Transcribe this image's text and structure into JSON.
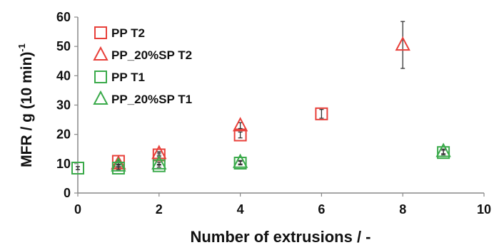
{
  "chart_data": {
    "type": "scatter",
    "xlabel": "Number of extrusions / -",
    "ylabel": "MFR / g (10 min)",
    "ylabel_sup": "-1",
    "xlim": [
      0,
      10
    ],
    "ylim": [
      0,
      60
    ],
    "x_ticks": [
      0,
      2,
      4,
      6,
      8,
      10
    ],
    "y_ticks": [
      0,
      10,
      20,
      30,
      40,
      50,
      60
    ],
    "grid": false,
    "legend_position": "top-left",
    "series": [
      {
        "name": "PP T2",
        "marker": "square",
        "color": "#e8403a",
        "points": [
          {
            "x": 0,
            "y": 8.5,
            "err": 0.5
          },
          {
            "x": 1,
            "y": 10.8,
            "err": 0.5
          },
          {
            "x": 2,
            "y": 13.0,
            "err": 0.6
          },
          {
            "x": 4,
            "y": 19.8,
            "err": 1.0
          },
          {
            "x": 6,
            "y": 27.0,
            "err": 1.5
          }
        ]
      },
      {
        "name": "PP_20%SP T2",
        "marker": "triangle",
        "color": "#e8403a",
        "points": [
          {
            "x": 1,
            "y": 10.0,
            "err": 0.5
          },
          {
            "x": 2,
            "y": 13.5,
            "err": 0.6
          },
          {
            "x": 4,
            "y": 23.0,
            "err": 1.0
          },
          {
            "x": 8,
            "y": 50.5,
            "err": 8.0
          }
        ]
      },
      {
        "name": "PP T1",
        "marker": "square",
        "color": "#3aaa4a",
        "points": [
          {
            "x": 0,
            "y": 8.5,
            "err": 0.5
          },
          {
            "x": 1,
            "y": 8.5,
            "err": 0.5
          },
          {
            "x": 2,
            "y": 9.3,
            "err": 0.5
          },
          {
            "x": 4,
            "y": 10.2,
            "err": 0.6
          },
          {
            "x": 9,
            "y": 13.8,
            "err": 0.8
          }
        ]
      },
      {
        "name": "PP_20%SP T1",
        "marker": "triangle",
        "color": "#3aaa4a",
        "points": [
          {
            "x": 1,
            "y": 9.3,
            "err": 0.5
          },
          {
            "x": 2,
            "y": 10.0,
            "err": 0.5
          },
          {
            "x": 4,
            "y": 10.5,
            "err": 0.6
          },
          {
            "x": 9,
            "y": 14.2,
            "err": 0.8
          }
        ]
      }
    ]
  }
}
